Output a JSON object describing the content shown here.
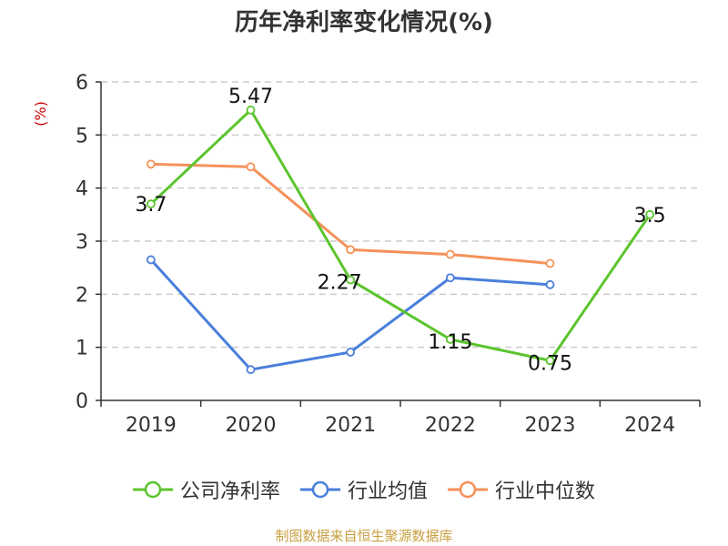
{
  "chart_data": {
    "type": "line",
    "title": "历年净利率变化情况(%)",
    "ylabel": "(%)",
    "xlabel": "",
    "categories": [
      "2019",
      "2020",
      "2021",
      "2022",
      "2023",
      "2024"
    ],
    "ylim": [
      0,
      6
    ],
    "yticks": [
      "0",
      "1",
      "2",
      "3",
      "4",
      "5",
      "6"
    ],
    "grid": "horizontal-dashed",
    "legend_position": "bottom",
    "series": [
      {
        "name": "公司净利率",
        "color": "#5cc42e",
        "values": [
          3.7,
          5.47,
          2.27,
          1.15,
          0.75,
          3.5
        ],
        "labels": [
          "3.7",
          "5.47",
          "2.27",
          "1.15",
          "0.75",
          "3.5"
        ]
      },
      {
        "name": "行业均值",
        "color": "#4a7fdc",
        "values": [
          2.65,
          0.58,
          0.91,
          2.31,
          2.18,
          null
        ]
      },
      {
        "name": "行业中位数",
        "color": "#f5915a",
        "values": [
          4.45,
          4.4,
          2.84,
          2.75,
          2.58,
          null
        ]
      }
    ]
  },
  "source": "制图数据来自恒生聚源数据库",
  "colors": {
    "ylabel": "#cc0000",
    "axis": "#333333",
    "grid": "#cccccc"
  }
}
